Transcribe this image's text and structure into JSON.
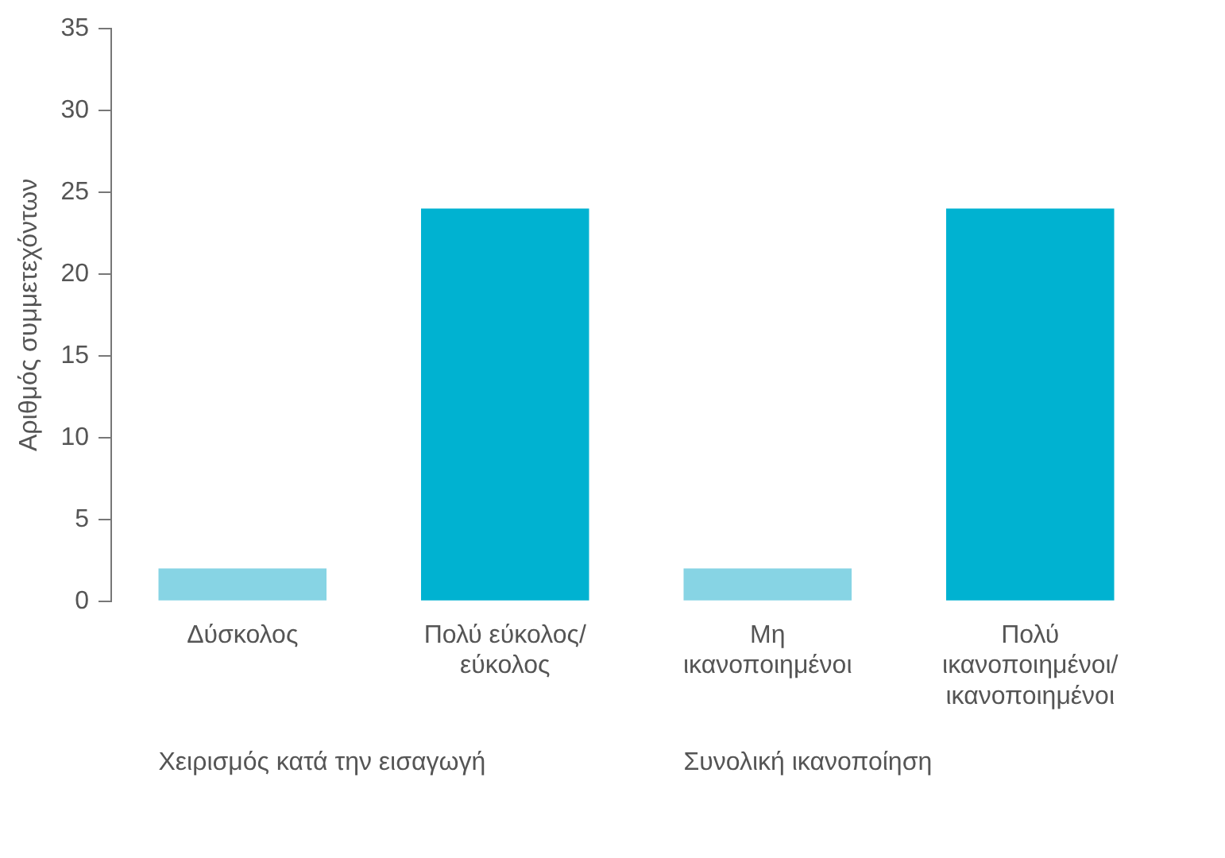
{
  "chart_data": {
    "type": "bar",
    "ylabel": "Αριθμός συμμετεχόντων",
    "categories": [
      "Δύσκολος",
      "Πολύ εύκολος/ εύκολος",
      "Μη ικανοποιημένοι",
      "Πολύ ικανοποιημένοι/ ικανοποιημένοι"
    ],
    "values": [
      2,
      24,
      2,
      24
    ],
    "colors": [
      "#87d4e4",
      "#00b2d1",
      "#87d4e4",
      "#00b2d1"
    ],
    "ylim": [
      0,
      35
    ],
    "yticks": [
      0,
      5,
      10,
      15,
      20,
      25,
      30,
      35
    ],
    "grid": false,
    "legend": false,
    "annotations": [
      "Χειρισμός κατά την εισαγωγή",
      "Συνολική ικανοποίηση"
    ]
  }
}
